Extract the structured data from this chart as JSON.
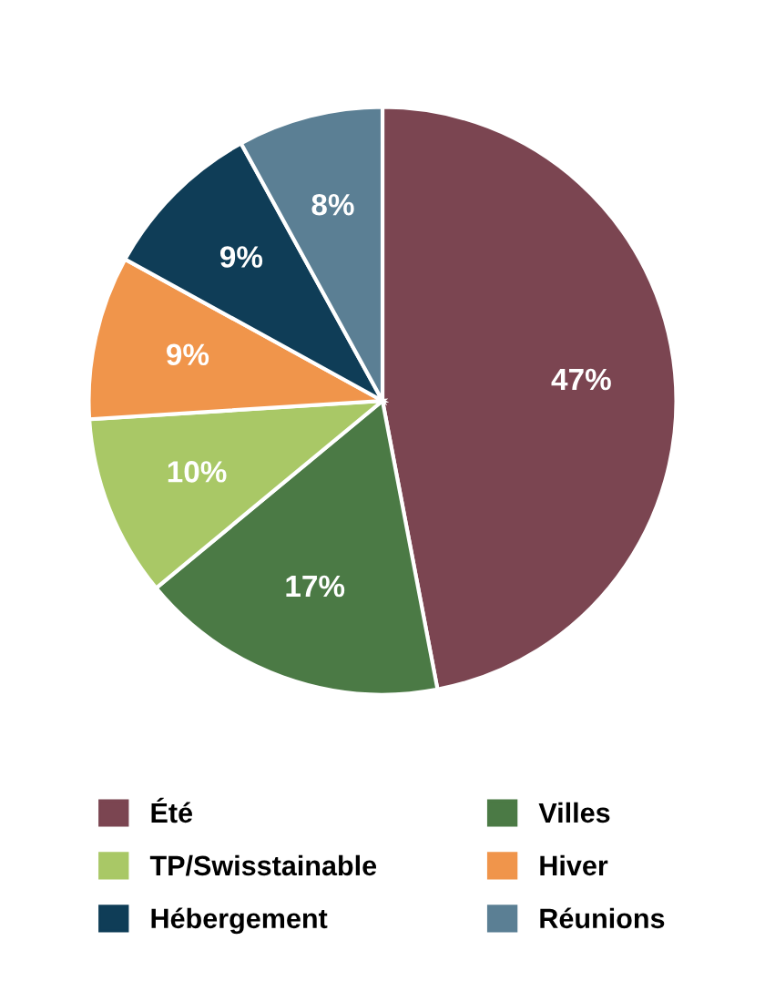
{
  "chart_data": {
    "type": "pie",
    "categories": [
      "Été",
      "Villes",
      "TP/Swisstainable",
      "Hiver",
      "Hébergement",
      "Réunions"
    ],
    "values": [
      47,
      17,
      10,
      9,
      9,
      8
    ],
    "colors": [
      "#7b4551",
      "#4b7a45",
      "#a9c866",
      "#f0954b",
      "#0f3d57",
      "#5b7f94"
    ],
    "value_labels": [
      "47%",
      "17%",
      "10%",
      "9%",
      "9%",
      "8%"
    ],
    "legend": "bottom"
  }
}
